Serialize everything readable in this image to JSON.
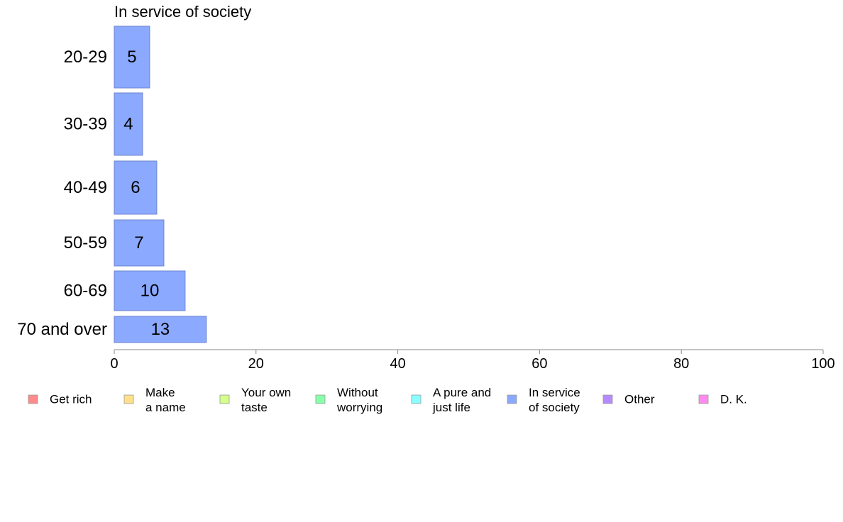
{
  "chart_data": {
    "type": "bar",
    "orientation": "horizontal",
    "title": "In service of society",
    "categories": [
      "20-29",
      "30-39",
      "40-49",
      "50-59",
      "60-69",
      "70 and over"
    ],
    "values": [
      5,
      4,
      6,
      7,
      10,
      13
    ],
    "xlim": [
      0,
      100
    ],
    "xticks": [
      0,
      20,
      40,
      60,
      80,
      100
    ],
    "grid": false,
    "bar_color": "#8aa9ff",
    "bar_edge_color": "#6f85cc",
    "legend": {
      "placement": "bottom",
      "entries": [
        {
          "label": [
            "Get rich"
          ],
          "color": "#ff8a8a"
        },
        {
          "label": [
            "Make",
            "a name"
          ],
          "color": "#ffe08a"
        },
        {
          "label": [
            "Your own",
            "taste"
          ],
          "color": "#d4ff8a"
        },
        {
          "label": [
            "Without",
            "worrying"
          ],
          "color": "#8affaa"
        },
        {
          "label": [
            "A pure and",
            "just life"
          ],
          "color": "#8affff"
        },
        {
          "label": [
            "In service",
            "of society"
          ],
          "color": "#8aa9ff"
        },
        {
          "label": [
            "Other"
          ],
          "color": "#b88aff"
        },
        {
          "label": [
            "D. K."
          ],
          "color": "#ff8aee"
        }
      ]
    }
  }
}
